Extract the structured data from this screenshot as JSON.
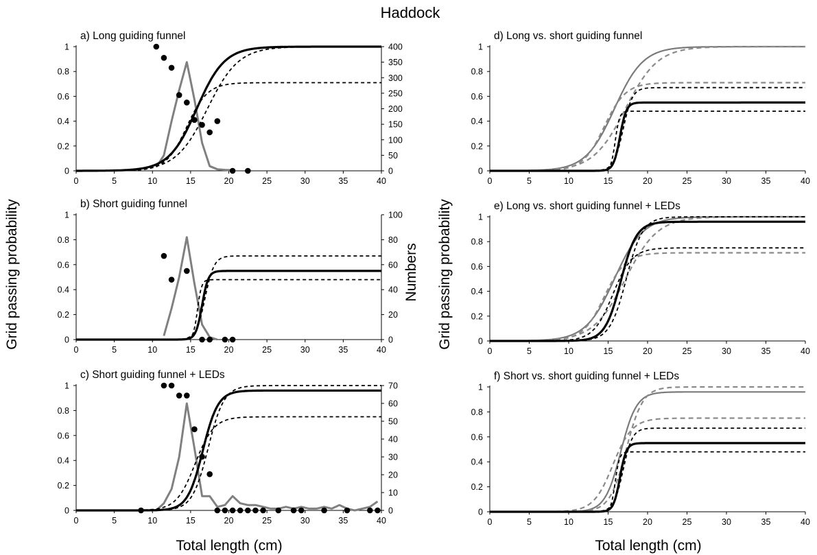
{
  "figure": {
    "title": "Haddock",
    "ylabel_left": "Grid passing probability",
    "ylabel_right_col": "Grid passing probability",
    "ylabel_numbers": "Numbers",
    "xlabel_left": "Total length (cm)",
    "xlabel_right": "Total length (cm)"
  },
  "chart_data": [
    {
      "id": "a",
      "type": "line",
      "title": "a) Long guiding funnel",
      "xlim": [
        0,
        40
      ],
      "xticks": [
        0,
        5,
        10,
        15,
        20,
        25,
        30,
        35,
        40
      ],
      "ylim": [
        0,
        1
      ],
      "yticks": [
        "0",
        "0.2",
        "0.4",
        "0.6",
        "0.8",
        "1"
      ],
      "y2lim": [
        0,
        400
      ],
      "y2ticks": [
        "0",
        "50",
        "100",
        "150",
        "200",
        "250",
        "300",
        "350",
        "400"
      ],
      "curves": [
        {
          "style": "black-solid",
          "A": 1.0,
          "L50": 15.8,
          "SR": 4.0
        },
        {
          "style": "black-dashed",
          "A": 1.0,
          "L50": 17.2,
          "SR": 4.5
        },
        {
          "style": "black-dashed",
          "A": 0.71,
          "L50": 14.5,
          "SR": 3.0
        }
      ],
      "points": [
        [
          10.5,
          1.0
        ],
        [
          11.5,
          0.91
        ],
        [
          12.5,
          0.83
        ],
        [
          13.5,
          0.61
        ],
        [
          14.5,
          0.55
        ],
        [
          15.5,
          0.41
        ],
        [
          16.5,
          0.37
        ],
        [
          17.5,
          0.31
        ],
        [
          18.5,
          0.4
        ],
        [
          20.5,
          0.0
        ],
        [
          22.5,
          0.0
        ]
      ],
      "numbers": [
        [
          10.5,
          12
        ],
        [
          11.5,
          50
        ],
        [
          12.5,
          160
        ],
        [
          13.5,
          260
        ],
        [
          14.5,
          350
        ],
        [
          15.5,
          230
        ],
        [
          16.5,
          90
        ],
        [
          17.5,
          15
        ],
        [
          18.5,
          5
        ],
        [
          19.5,
          3
        ],
        [
          20.5,
          2
        ]
      ]
    },
    {
      "id": "b",
      "type": "line",
      "title": "b) Short guiding funnel",
      "xlim": [
        0,
        40
      ],
      "xticks": [
        0,
        5,
        10,
        15,
        20,
        25,
        30,
        35,
        40
      ],
      "ylim": [
        0,
        1
      ],
      "yticks": [
        "0",
        "0.2",
        "0.4",
        "0.6",
        "0.8",
        "1"
      ],
      "y2lim": [
        0,
        100
      ],
      "y2ticks": [
        "0",
        "20",
        "40",
        "60",
        "80",
        "100"
      ],
      "curves": [
        {
          "style": "black-solid",
          "A": 0.55,
          "L50": 16.5,
          "SR": 0.9
        },
        {
          "style": "black-dashed",
          "A": 0.67,
          "L50": 16.9,
          "SR": 1.3
        },
        {
          "style": "black-dashed",
          "A": 0.48,
          "L50": 15.9,
          "SR": 0.6
        }
      ],
      "points": [
        [
          11.5,
          0.67
        ],
        [
          12.5,
          0.48
        ],
        [
          14.5,
          0.55
        ],
        [
          16.5,
          0.0
        ],
        [
          17.5,
          0.0
        ],
        [
          19.5,
          0.0
        ],
        [
          20.5,
          0.0
        ]
      ],
      "numbers": [
        [
          11.5,
          3
        ],
        [
          12.5,
          25
        ],
        [
          13.5,
          50
        ],
        [
          14.5,
          82
        ],
        [
          15.5,
          45
        ],
        [
          16.5,
          12
        ],
        [
          17.5,
          2
        ],
        [
          18.5,
          0
        ]
      ]
    },
    {
      "id": "c",
      "type": "line",
      "title": "c) Short guiding funnel + LEDs",
      "xlim": [
        0,
        40
      ],
      "xticks": [
        0,
        5,
        10,
        15,
        20,
        25,
        30,
        35,
        40
      ],
      "ylim": [
        0,
        1
      ],
      "yticks": [
        "0",
        "0.2",
        "0.4",
        "0.6",
        "0.8",
        "1"
      ],
      "y2lim": [
        0,
        70
      ],
      "y2ticks": [
        "0",
        "10",
        "20",
        "30",
        "40",
        "50",
        "60",
        "70"
      ],
      "curves": [
        {
          "style": "black-solid",
          "A": 0.96,
          "L50": 16.6,
          "SR": 2.2
        },
        {
          "style": "black-dashed",
          "A": 1.0,
          "L50": 17.3,
          "SR": 2.3
        },
        {
          "style": "black-dashed",
          "A": 0.75,
          "L50": 15.6,
          "SR": 2.7
        }
      ],
      "points": [
        [
          8.5,
          0.0
        ],
        [
          11.5,
          1.0
        ],
        [
          12.5,
          1.0
        ],
        [
          13.5,
          0.92
        ],
        [
          14.5,
          0.92
        ],
        [
          15.5,
          0.65
        ],
        [
          16.5,
          0.43
        ],
        [
          17.5,
          0.29
        ],
        [
          18.5,
          0.0
        ],
        [
          19.5,
          0.0
        ],
        [
          20.5,
          0.0
        ],
        [
          21.5,
          0.0
        ],
        [
          22.5,
          0.0
        ],
        [
          23.5,
          0.0
        ],
        [
          24.5,
          0.0
        ],
        [
          26.5,
          0.0
        ],
        [
          28.5,
          0.0
        ],
        [
          29.5,
          0.0
        ],
        [
          32.5,
          0.0
        ],
        [
          35.5,
          0.0
        ],
        [
          38.5,
          0.0
        ],
        [
          39.5,
          0.0
        ]
      ],
      "numbers": [
        [
          8.5,
          0
        ],
        [
          10.5,
          0
        ],
        [
          11.5,
          4
        ],
        [
          12.5,
          12
        ],
        [
          13.5,
          30
        ],
        [
          14.5,
          60
        ],
        [
          15.5,
          35
        ],
        [
          16.5,
          8
        ],
        [
          17.5,
          8
        ],
        [
          18.5,
          2
        ],
        [
          19.5,
          3
        ],
        [
          20.5,
          8
        ],
        [
          21.5,
          4
        ],
        [
          22.5,
          3
        ],
        [
          23.5,
          3
        ],
        [
          24.5,
          2
        ],
        [
          25.5,
          1
        ],
        [
          26.5,
          1
        ],
        [
          27.5,
          2
        ],
        [
          28.5,
          1
        ],
        [
          29.5,
          2
        ],
        [
          30.5,
          1
        ],
        [
          31.5,
          1
        ],
        [
          32.5,
          2
        ],
        [
          33.5,
          1
        ],
        [
          34.5,
          3
        ],
        [
          35.5,
          1
        ],
        [
          36.5,
          0
        ],
        [
          37.5,
          1
        ],
        [
          38.5,
          2
        ],
        [
          39.5,
          5
        ]
      ]
    },
    {
      "id": "d",
      "type": "line",
      "title": "d) Long vs. short guiding funnel",
      "xlim": [
        0,
        40
      ],
      "xticks": [
        0,
        5,
        10,
        15,
        20,
        25,
        30,
        35,
        40
      ],
      "ylim": [
        0,
        1
      ],
      "yticks": [
        "0",
        "0.2",
        "0.4",
        "0.6",
        "0.8",
        "1"
      ],
      "curves": [
        {
          "style": "gray-solid",
          "A": 1.0,
          "L50": 15.8,
          "SR": 4.0
        },
        {
          "style": "gray-dashed",
          "A": 1.0,
          "L50": 17.2,
          "SR": 4.5
        },
        {
          "style": "gray-dashed",
          "A": 0.71,
          "L50": 14.5,
          "SR": 3.0
        },
        {
          "style": "black-solid",
          "A": 0.55,
          "L50": 16.5,
          "SR": 0.9
        },
        {
          "style": "black-dashed",
          "A": 0.67,
          "L50": 16.9,
          "SR": 1.3
        },
        {
          "style": "black-dashed",
          "A": 0.48,
          "L50": 15.9,
          "SR": 0.6
        }
      ]
    },
    {
      "id": "e",
      "type": "line",
      "title": "e) Long vs. short guiding funnel + LEDs",
      "xlim": [
        0,
        40
      ],
      "xticks": [
        0,
        5,
        10,
        15,
        20,
        25,
        30,
        35,
        40
      ],
      "ylim": [
        0,
        1
      ],
      "yticks": [
        "0",
        "0.2",
        "0.4",
        "0.6",
        "0.8",
        "1"
      ],
      "curves": [
        {
          "style": "gray-solid",
          "A": 1.0,
          "L50": 15.8,
          "SR": 4.0
        },
        {
          "style": "gray-dashed",
          "A": 1.0,
          "L50": 17.2,
          "SR": 4.5
        },
        {
          "style": "gray-dashed",
          "A": 0.71,
          "L50": 14.5,
          "SR": 3.0
        },
        {
          "style": "black-solid",
          "A": 0.96,
          "L50": 16.6,
          "SR": 2.2
        },
        {
          "style": "black-dashed",
          "A": 1.0,
          "L50": 17.3,
          "SR": 2.3
        },
        {
          "style": "black-dashed",
          "A": 0.75,
          "L50": 15.6,
          "SR": 2.7
        }
      ]
    },
    {
      "id": "f",
      "type": "line",
      "title": "f) Short vs. short guiding funnel + LEDs",
      "xlim": [
        0,
        40
      ],
      "xticks": [
        0,
        5,
        10,
        15,
        20,
        25,
        30,
        35,
        40
      ],
      "ylim": [
        0,
        1
      ],
      "yticks": [
        "0",
        "0.2",
        "0.4",
        "0.6",
        "0.8",
        "1"
      ],
      "curves": [
        {
          "style": "gray-solid",
          "A": 0.96,
          "L50": 16.6,
          "SR": 2.2
        },
        {
          "style": "gray-dashed",
          "A": 1.0,
          "L50": 17.3,
          "SR": 2.3
        },
        {
          "style": "gray-dashed",
          "A": 0.75,
          "L50": 15.6,
          "SR": 2.7
        },
        {
          "style": "black-solid",
          "A": 0.55,
          "L50": 16.5,
          "SR": 0.9
        },
        {
          "style": "black-dashed",
          "A": 0.67,
          "L50": 16.9,
          "SR": 1.3
        },
        {
          "style": "black-dashed",
          "A": 0.48,
          "L50": 15.9,
          "SR": 0.6
        }
      ]
    }
  ]
}
